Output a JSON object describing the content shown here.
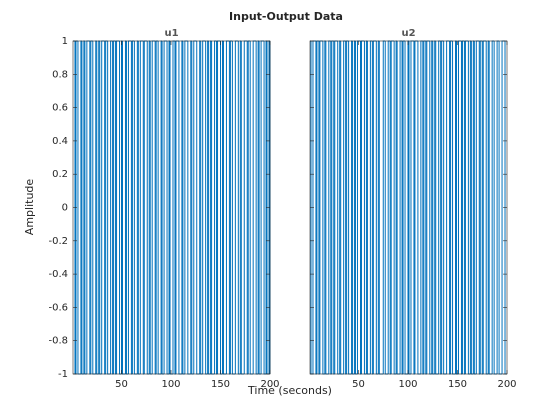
{
  "title": "Input-Output Data",
  "xlabel": "Time (seconds)",
  "ylabel": "Amplitude",
  "chart_data": [
    {
      "type": "stairs",
      "title": "u1",
      "color": "#0072bd",
      "xlim": [
        1,
        200
      ],
      "ylim": [
        -1,
        1
      ],
      "xticks": [
        50,
        100,
        150,
        200
      ],
      "yticks": [
        -1,
        -0.8,
        -0.6,
        -0.4,
        -0.2,
        0,
        0.2,
        0.4,
        0.6,
        0.8,
        1
      ],
      "show_ytick_labels": true,
      "x": [
        1,
        3,
        4,
        6,
        9,
        10,
        12,
        13,
        15,
        18,
        19,
        21,
        24,
        25,
        27,
        28,
        30,
        33,
        34,
        36,
        39,
        41,
        42,
        44,
        45,
        48,
        50,
        51,
        54,
        55,
        57,
        60,
        61,
        63,
        66,
        67,
        69,
        72,
        73,
        76,
        78,
        79,
        81,
        84,
        85,
        87,
        90,
        91,
        93,
        96,
        98,
        99,
        102,
        104,
        105,
        108,
        111,
        112,
        114,
        117,
        120,
        121,
        123,
        126,
        129,
        130,
        132,
        135,
        137,
        138,
        140,
        141,
        144,
        146,
        147,
        150,
        152,
        153,
        156,
        159,
        160,
        162,
        165,
        168,
        170,
        171,
        174,
        177,
        178,
        180,
        183,
        186,
        188,
        189,
        191,
        194,
        196,
        197,
        199,
        200
      ],
      "values": [
        1,
        -1,
        1,
        -1,
        1,
        -1,
        1,
        -1,
        1,
        -1,
        1,
        -1,
        1,
        -1,
        1,
        -1,
        1,
        -1,
        1,
        -1,
        1,
        -1,
        1,
        -1,
        1,
        -1,
        1,
        -1,
        1,
        -1,
        1,
        -1,
        1,
        -1,
        1,
        -1,
        1,
        -1,
        1,
        -1,
        1,
        -1,
        1,
        -1,
        1,
        -1,
        1,
        -1,
        1,
        -1,
        1,
        -1,
        1,
        -1,
        1,
        -1,
        1,
        -1,
        1,
        -1,
        1,
        -1,
        1,
        -1,
        1,
        -1,
        1,
        -1,
        1,
        -1,
        1,
        -1,
        1,
        -1,
        1,
        -1,
        1,
        -1,
        1,
        -1,
        1,
        -1,
        1,
        -1,
        1,
        -1,
        1,
        -1,
        1,
        -1,
        1,
        -1,
        1,
        -1,
        1,
        -1,
        1,
        -1,
        1,
        -1
      ]
    },
    {
      "type": "stairs",
      "title": "u2",
      "color": "#0072bd",
      "xlim": [
        1,
        200
      ],
      "ylim": [
        -1,
        1
      ],
      "xticks": [
        50,
        100,
        150,
        200
      ],
      "yticks": [
        -1,
        -0.8,
        -0.6,
        -0.4,
        -0.2,
        0,
        0.2,
        0.4,
        0.6,
        0.8,
        1
      ],
      "show_ytick_labels": false,
      "x": [
        1,
        2,
        4,
        7,
        8,
        10,
        11,
        14,
        16,
        17,
        20,
        22,
        23,
        25,
        26,
        29,
        31,
        32,
        35,
        37,
        38,
        40,
        43,
        44,
        46,
        47,
        49,
        52,
        53,
        56,
        58,
        59,
        62,
        64,
        65,
        68,
        70,
        71,
        75,
        77,
        80,
        82,
        83,
        86,
        88,
        89,
        92,
        94,
        95,
        97,
        100,
        101,
        103,
        106,
        107,
        110,
        113,
        115,
        116,
        118,
        119,
        122,
        124,
        125,
        127,
        128,
        131,
        133,
        134,
        136,
        139,
        142,
        143,
        145,
        148,
        149,
        151,
        154,
        155,
        157,
        158,
        161,
        163,
        164,
        166,
        167,
        169,
        172,
        173,
        175,
        176,
        179,
        181,
        182,
        185,
        187,
        190,
        192,
        195,
        198
      ],
      "values": [
        1,
        -1,
        1,
        -1,
        1,
        -1,
        1,
        -1,
        1,
        -1,
        1,
        -1,
        1,
        -1,
        1,
        -1,
        1,
        -1,
        1,
        -1,
        1,
        -1,
        1,
        -1,
        1,
        -1,
        1,
        -1,
        1,
        -1,
        1,
        -1,
        1,
        -1,
        1,
        -1,
        1,
        -1,
        1,
        -1,
        1,
        -1,
        1,
        -1,
        1,
        -1,
        1,
        -1,
        1,
        -1,
        1,
        -1,
        1,
        -1,
        1,
        -1,
        1,
        -1,
        1,
        -1,
        1,
        -1,
        1,
        -1,
        1,
        -1,
        1,
        -1,
        1,
        -1,
        1,
        -1,
        1,
        -1,
        1,
        -1,
        1,
        -1,
        1,
        -1,
        1,
        -1,
        1,
        -1,
        1,
        -1,
        1,
        -1,
        1,
        -1,
        1,
        -1,
        1,
        -1,
        1,
        -1,
        1,
        -1,
        1,
        -1
      ]
    }
  ]
}
